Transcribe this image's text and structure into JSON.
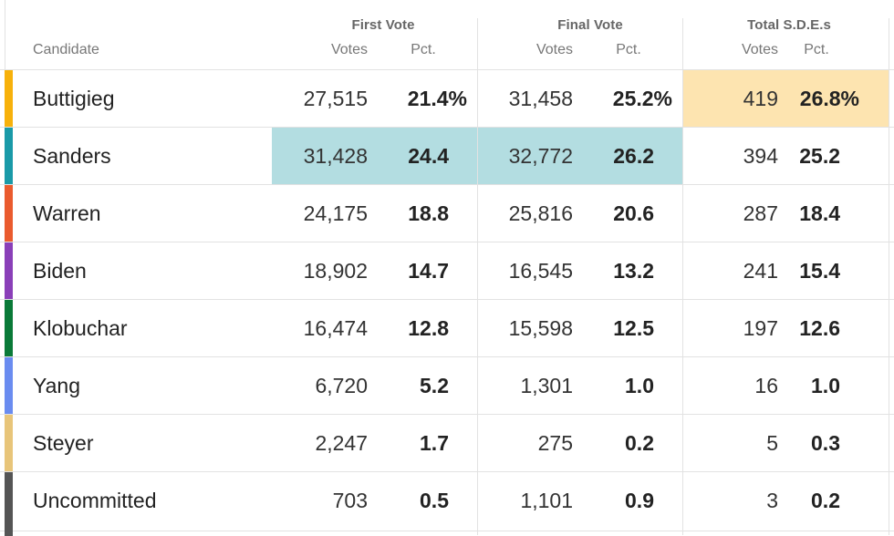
{
  "header": {
    "candidate_label": "Candidate",
    "groups": [
      {
        "label": "First Vote",
        "votes_label": "Votes",
        "pct_label": "Pct."
      },
      {
        "label": "Final Vote",
        "votes_label": "Votes",
        "pct_label": "Pct."
      },
      {
        "label": "Total S.D.E.s",
        "votes_label": "Votes",
        "pct_label": "Pct."
      }
    ]
  },
  "rows": [
    {
      "name": "Buttigieg",
      "color": "#f7b10b",
      "first_votes": "27,515",
      "first_pct": "21.4%",
      "final_votes": "31,458",
      "final_pct": "25.2%",
      "sde_votes": "419",
      "sde_pct": "26.8%"
    },
    {
      "name": "Sanders",
      "color": "#1a9aa8",
      "first_votes": "31,428",
      "first_pct": "24.4",
      "final_votes": "32,772",
      "final_pct": "26.2",
      "sde_votes": "394",
      "sde_pct": "25.2"
    },
    {
      "name": "Warren",
      "color": "#ea5b2e",
      "first_votes": "24,175",
      "first_pct": "18.8",
      "final_votes": "25,816",
      "final_pct": "20.6",
      "sde_votes": "287",
      "sde_pct": "18.4"
    },
    {
      "name": "Biden",
      "color": "#8a3fb8",
      "first_votes": "18,902",
      "first_pct": "14.7",
      "final_votes": "16,545",
      "final_pct": "13.2",
      "sde_votes": "241",
      "sde_pct": "15.4"
    },
    {
      "name": "Klobuchar",
      "color": "#0a7a38",
      "first_votes": "16,474",
      "first_pct": "12.8",
      "final_votes": "15,598",
      "final_pct": "12.5",
      "sde_votes": "197",
      "sde_pct": "12.6"
    },
    {
      "name": "Yang",
      "color": "#6a8cf0",
      "first_votes": "6,720",
      "first_pct": "5.2",
      "final_votes": "1,301",
      "final_pct": "1.0",
      "sde_votes": "16",
      "sde_pct": "1.0"
    },
    {
      "name": "Steyer",
      "color": "#e8c57a",
      "first_votes": "2,247",
      "first_pct": "1.7",
      "final_votes": "275",
      "final_pct": "0.2",
      "sde_votes": "5",
      "sde_pct": "0.3"
    },
    {
      "name": "Uncommitted",
      "color": "#555555",
      "first_votes": "703",
      "first_pct": "0.5",
      "final_votes": "1,101",
      "final_pct": "0.9",
      "sde_votes": "3",
      "sde_pct": "0.2"
    }
  ],
  "highlights": {
    "sde_leader_color": "#fde4b0",
    "vote_leader_color": "#b3dde1"
  }
}
